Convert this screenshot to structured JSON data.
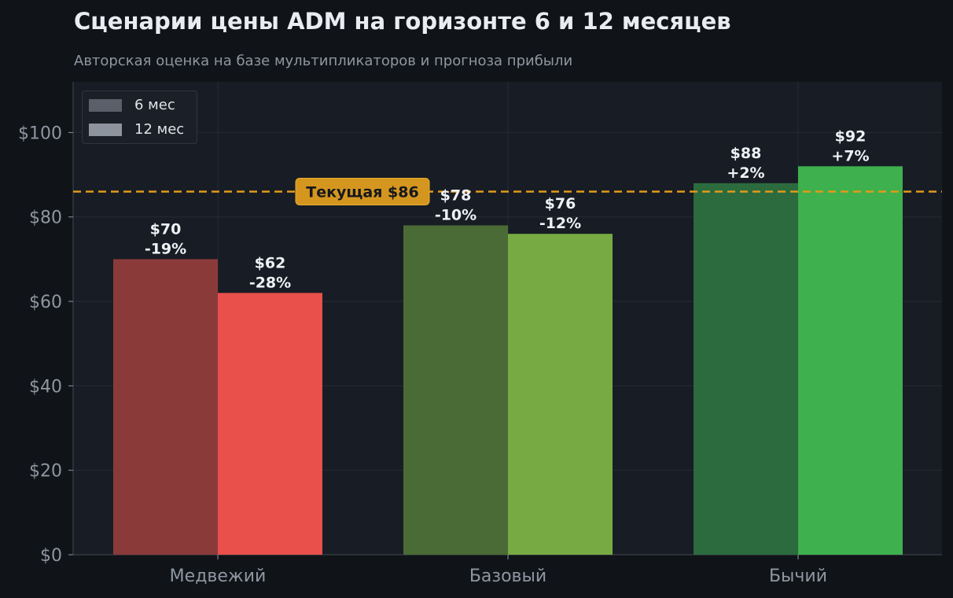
{
  "title": "Сценарии цены ADM на горизонте 6 и 12 месяцев",
  "subtitle": "Авторская оценка на базе мультипликаторов и прогноза прибыли",
  "chart_data": {
    "type": "bar",
    "categories": [
      "Медвежий",
      "Базовый",
      "Бычий"
    ],
    "series": [
      {
        "name": "6 мес",
        "values": [
          70,
          78,
          88
        ],
        "labels": [
          "$70",
          "$78",
          "$88"
        ],
        "changes": [
          "-19%",
          "-10%",
          "+2%"
        ],
        "colors": [
          "#8b3a3a",
          "#4a6b35",
          "#2b6b3e"
        ]
      },
      {
        "name": "12 мес",
        "values": [
          62,
          76,
          92
        ],
        "labels": [
          "$62",
          "$76",
          "$92"
        ],
        "changes": [
          "-28%",
          "-12%",
          "+7%"
        ],
        "colors": [
          "#e9504b",
          "#78aa43",
          "#3eb04d"
        ]
      }
    ],
    "reference_line": {
      "value": 86,
      "label": "Текущая $86",
      "color": "#e09a1a"
    },
    "y_ticks": [
      "$0",
      "$20",
      "$40",
      "$60",
      "$80",
      "$100"
    ],
    "y_tick_values": [
      0,
      20,
      40,
      60,
      80,
      100
    ],
    "ylim": [
      0,
      112
    ],
    "xlabel": "",
    "ylabel": "",
    "grid": true,
    "legend": {
      "position": "top-left",
      "items": [
        {
          "label": "6 мес",
          "color": "#5b5f6a"
        },
        {
          "label": "12 мес",
          "color": "#8e949d"
        }
      ]
    }
  }
}
